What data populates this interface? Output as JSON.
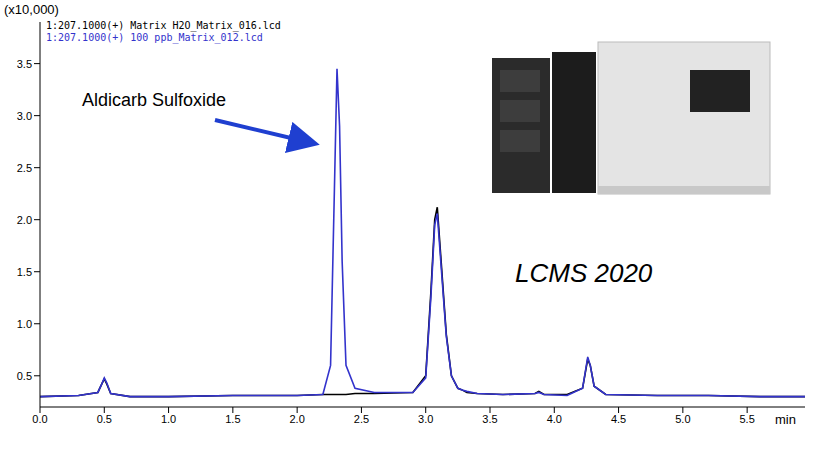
{
  "chart_data": {
    "type": "line",
    "y_scale_label": "(x10,000)",
    "x_label": "min",
    "annotation": "Aldicarb Sulfoxide",
    "instrument_label": "LCMS 2020",
    "legend": "upper left",
    "grid": false,
    "x": [
      0,
      0.3,
      0.45,
      0.48,
      0.5,
      0.52,
      0.55,
      0.7,
      1.0,
      1.5,
      2.0,
      2.2,
      2.26,
      2.29,
      2.31,
      2.33,
      2.35,
      2.38,
      2.45,
      2.6,
      2.9,
      3.0,
      3.04,
      3.07,
      3.09,
      3.12,
      3.16,
      3.2,
      3.25,
      3.29,
      3.32,
      3.4,
      3.6,
      3.85,
      3.88,
      3.92,
      4.1,
      4.22,
      4.26,
      4.28,
      4.31,
      4.4,
      4.8,
      5.2,
      5.6,
      5.95
    ],
    "series": [
      {
        "name": "1:207.1000(+) Matrix H2O_Matrix_016.lcd",
        "color": "#000000",
        "values": [
          0.3,
          0.31,
          0.34,
          0.42,
          0.47,
          0.42,
          0.33,
          0.3,
          0.3,
          0.31,
          0.31,
          0.32,
          0.32,
          0.32,
          0.32,
          0.32,
          0.32,
          0.32,
          0.33,
          0.33,
          0.34,
          0.5,
          1.3,
          2.0,
          2.12,
          1.6,
          0.9,
          0.5,
          0.38,
          0.36,
          0.34,
          0.33,
          0.32,
          0.33,
          0.35,
          0.32,
          0.32,
          0.38,
          0.66,
          0.6,
          0.4,
          0.32,
          0.31,
          0.31,
          0.3,
          0.3
        ]
      },
      {
        "name": "1:207.1000(+) 100 ppb_Matrix_012.lcd",
        "color": "#3333cc",
        "values": [
          0.3,
          0.31,
          0.34,
          0.42,
          0.48,
          0.43,
          0.33,
          0.3,
          0.3,
          0.31,
          0.31,
          0.32,
          0.6,
          2.3,
          3.45,
          2.9,
          1.6,
          0.6,
          0.38,
          0.34,
          0.34,
          0.48,
          1.25,
          1.95,
          2.06,
          1.55,
          0.88,
          0.5,
          0.38,
          0.36,
          0.35,
          0.33,
          0.32,
          0.33,
          0.34,
          0.32,
          0.31,
          0.38,
          0.68,
          0.6,
          0.4,
          0.32,
          0.31,
          0.31,
          0.3,
          0.3
        ]
      }
    ],
    "xlim": [
      0,
      5.95
    ],
    "xticks": [
      {
        "value": 0,
        "label": "0.0"
      },
      0.5,
      {
        "value": 1,
        "label": "1.0"
      },
      1.5,
      {
        "value": 2,
        "label": "2.0"
      },
      2.5,
      {
        "value": 3,
        "label": "3.0"
      },
      3.5,
      {
        "value": 4,
        "label": "4.0"
      },
      4.5,
      {
        "value": 5,
        "label": "5.0"
      },
      5.5
    ],
    "ylim": [
      0.2,
      3.9
    ],
    "yticks": [
      0.5,
      {
        "value": 1,
        "label": "1.0"
      },
      1.5,
      {
        "value": 2,
        "label": "2.0"
      },
      2.5,
      {
        "value": 3,
        "label": "3.0"
      },
      3.5
    ]
  }
}
